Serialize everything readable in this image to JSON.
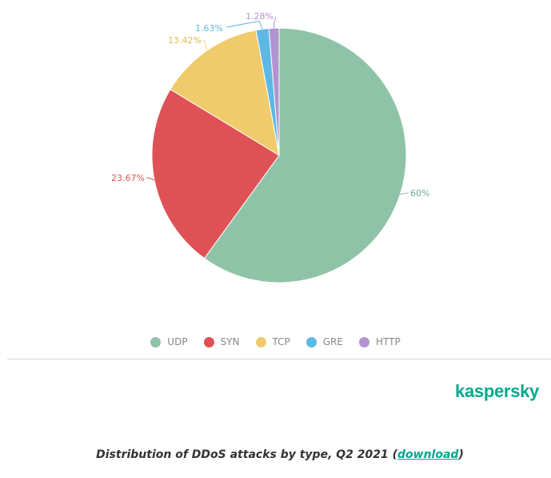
{
  "chart_data": {
    "type": "pie",
    "categories": [
      "UDP",
      "SYN",
      "TCP",
      "GRE",
      "HTTP"
    ],
    "values": [
      60,
      23.67,
      13.42,
      1.63,
      1.28
    ],
    "labels": [
      "60%",
      "23.67%",
      "13.42%",
      "1.63%",
      "1.28%"
    ],
    "colors": [
      "#8fc3a8",
      "#de5256",
      "#efcb6b",
      "#5db8e6",
      "#b194d0"
    ],
    "legend_position": "bottom"
  },
  "brand": {
    "name": "kaspersky",
    "color": "#00a88e"
  },
  "caption": {
    "text": "Distribution of DDoS attacks by type, Q2 2021 (",
    "link": "download",
    "close": ")"
  }
}
